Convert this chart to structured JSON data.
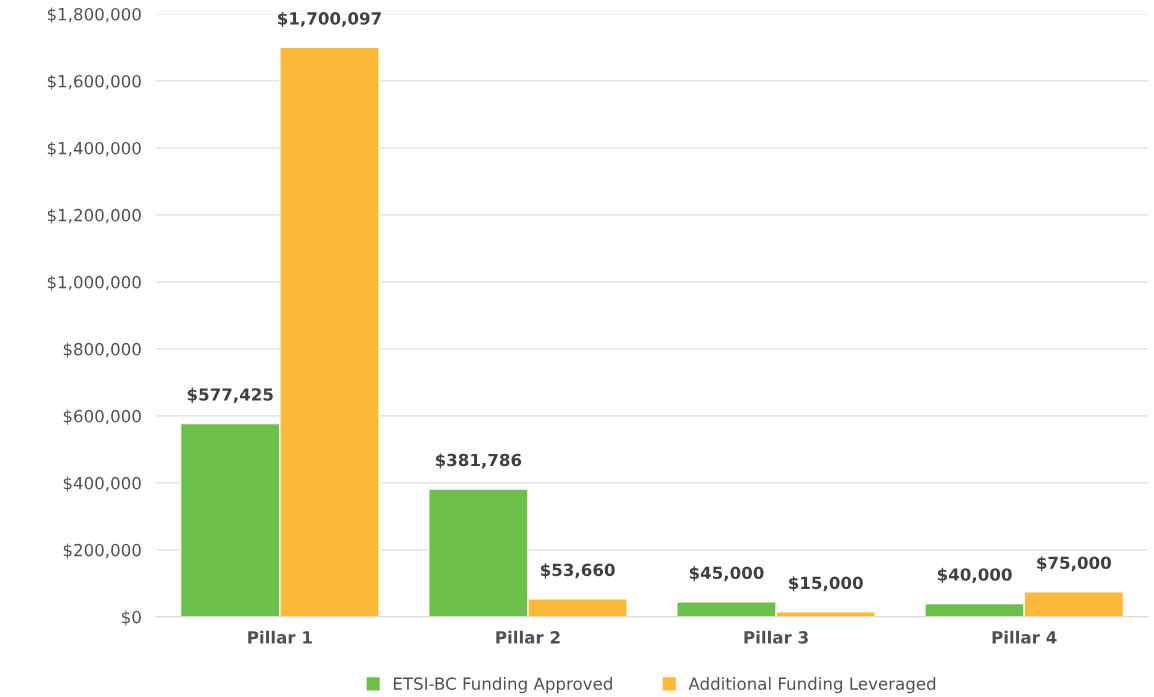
{
  "chart_data": {
    "type": "bar",
    "categories": [
      "Pillar 1",
      "Pillar 2",
      "Pillar 3",
      "Pillar 4"
    ],
    "series": [
      {
        "name": "ETSI-BC Funding Approved",
        "color": "#6cbf4a",
        "values": [
          577425,
          381786,
          45000,
          40000
        ],
        "value_labels": [
          "$577,425",
          "$381,786",
          "$45,000",
          "$40,000"
        ]
      },
      {
        "name": "Additional Funding Leveraged",
        "color": "#fbb93a",
        "values": [
          1700097,
          53660,
          15000,
          75000
        ],
        "value_labels": [
          "$1,700,097",
          "$53,660",
          "$15,000",
          "$75,000"
        ]
      }
    ],
    "ylim": [
      0,
      1800000
    ],
    "yticks": [
      {
        "value": 0,
        "label": "$0"
      },
      {
        "value": 200000,
        "label": "$200,000"
      },
      {
        "value": 400000,
        "label": "$400,000"
      },
      {
        "value": 600000,
        "label": "$600,000"
      },
      {
        "value": 800000,
        "label": "$800,000"
      },
      {
        "value": 1000000,
        "label": "$1,000,000"
      },
      {
        "value": 1200000,
        "label": "$1,200,000"
      },
      {
        "value": 1400000,
        "label": "$1,400,000"
      },
      {
        "value": 1600000,
        "label": "$1,600,000"
      },
      {
        "value": 1800000,
        "label": "$1,800,000"
      }
    ],
    "grid": "y",
    "legend": "bottom"
  }
}
